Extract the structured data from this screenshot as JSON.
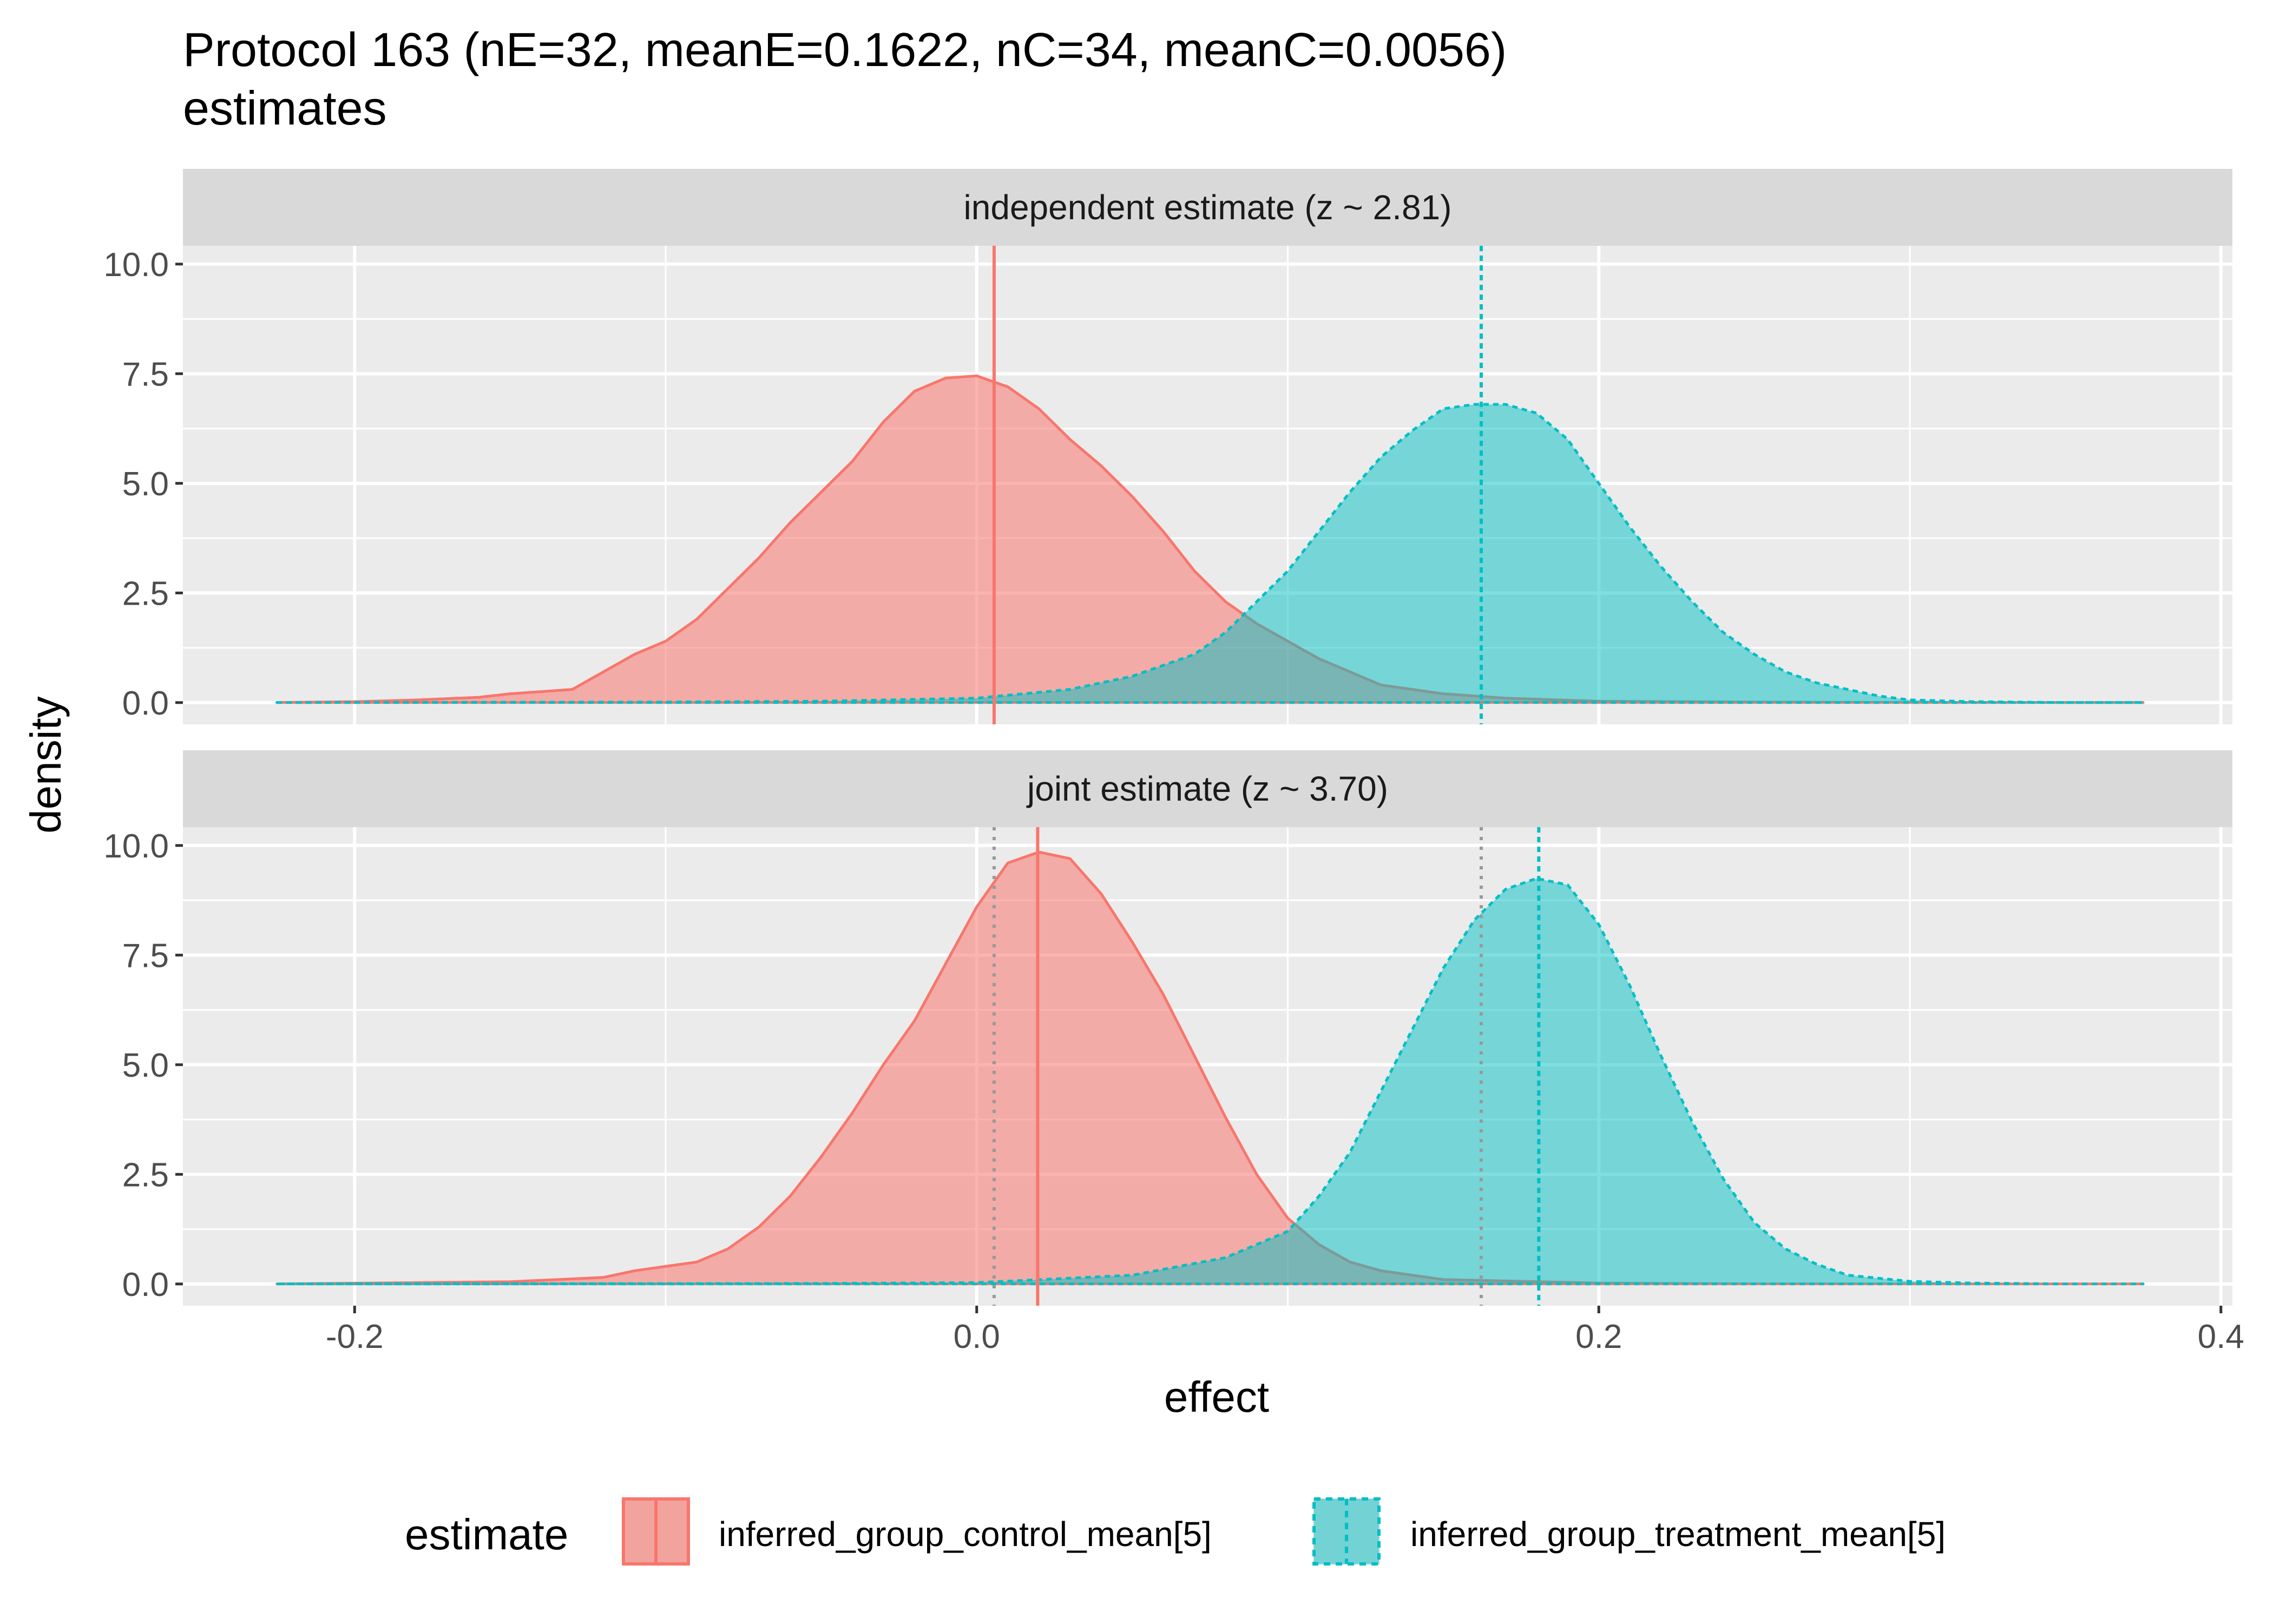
{
  "chart_data": {
    "type": "area",
    "title_line1": "Protocol 163 (nE=32, meanE=0.1622, nC=34, meanC=0.0056)",
    "title_line2": "estimates",
    "xlabel": "effect",
    "ylabel": "density",
    "xlim": [
      -0.2552,
      0.4037
    ],
    "ylim": [
      -0.4957,
      10.4179
    ],
    "x_ticks": [
      -0.2,
      0.0,
      0.2,
      0.4
    ],
    "x_tick_labels": [
      "-0.2",
      "0.0",
      "0.2",
      "0.4"
    ],
    "y_ticks": [
      0.0,
      2.5,
      5.0,
      7.5,
      10.0
    ],
    "y_tick_labels": [
      "0.0",
      "2.5",
      "5.0",
      "7.5",
      "10.0"
    ],
    "legend": {
      "title": "estimate",
      "position": "bottom",
      "entries": [
        {
          "label": "inferred_group_control_mean[5]",
          "color": "#F8766D",
          "linetype": "solid"
        },
        {
          "label": "inferred_group_treatment_mean[5]",
          "color": "#00BFC4",
          "linetype": "dashed"
        }
      ]
    },
    "colors": {
      "control": "#F8766D",
      "treatment": "#00BFC4",
      "reference_line": "#999999"
    },
    "panels": [
      {
        "strip": "independent estimate (z ~  2.81)",
        "control_mean": 0.0056,
        "treatment_mean": 0.1622,
        "reference_lines": [],
        "series": [
          {
            "name": "inferred_group_control_mean[5]",
            "x": [
              -0.225,
              -0.2,
              -0.18,
              -0.16,
              -0.15,
              -0.14,
              -0.13,
              -0.12,
              -0.11,
              -0.1,
              -0.09,
              -0.08,
              -0.07,
              -0.06,
              -0.05,
              -0.04,
              -0.03,
              -0.02,
              -0.01,
              0.0,
              0.01,
              0.02,
              0.03,
              0.04,
              0.05,
              0.06,
              0.07,
              0.08,
              0.09,
              0.1,
              0.11,
              0.12,
              0.13,
              0.14,
              0.15,
              0.17,
              0.2,
              0.25,
              0.3,
              0.375
            ],
            "y": [
              0.0,
              0.02,
              0.06,
              0.12,
              0.2,
              0.25,
              0.3,
              0.7,
              1.1,
              1.4,
              1.9,
              2.6,
              3.3,
              4.1,
              4.8,
              5.5,
              6.4,
              7.1,
              7.4,
              7.45,
              7.2,
              6.7,
              6.0,
              5.4,
              4.7,
              3.9,
              3.0,
              2.3,
              1.8,
              1.4,
              1.0,
              0.7,
              0.4,
              0.3,
              0.2,
              0.1,
              0.03,
              0.01,
              0.0,
              0.0
            ]
          },
          {
            "name": "inferred_group_treatment_mean[5]",
            "x": [
              -0.225,
              -0.1,
              -0.05,
              0.0,
              0.03,
              0.05,
              0.07,
              0.08,
              0.09,
              0.1,
              0.11,
              0.12,
              0.13,
              0.14,
              0.15,
              0.16,
              0.17,
              0.18,
              0.19,
              0.2,
              0.21,
              0.22,
              0.23,
              0.24,
              0.25,
              0.26,
              0.27,
              0.28,
              0.29,
              0.3,
              0.32,
              0.35,
              0.375
            ],
            "y": [
              0.0,
              0.01,
              0.03,
              0.1,
              0.3,
              0.6,
              1.1,
              1.6,
              2.3,
              3.0,
              3.9,
              4.8,
              5.6,
              6.2,
              6.7,
              6.8,
              6.8,
              6.6,
              6.0,
              5.0,
              4.0,
              3.1,
              2.3,
              1.6,
              1.1,
              0.7,
              0.45,
              0.3,
              0.15,
              0.06,
              0.02,
              0.0,
              0.0
            ]
          }
        ]
      },
      {
        "strip": "joint estimate (z ~  3.70)",
        "control_mean": 0.0196,
        "treatment_mean": 0.1807,
        "reference_lines": [
          0.0056,
          0.1622
        ],
        "series": [
          {
            "name": "inferred_group_control_mean[5]",
            "x": [
              -0.225,
              -0.15,
              -0.12,
              -0.11,
              -0.1,
              -0.09,
              -0.08,
              -0.07,
              -0.06,
              -0.05,
              -0.04,
              -0.03,
              -0.02,
              -0.01,
              0.0,
              0.01,
              0.02,
              0.03,
              0.04,
              0.05,
              0.06,
              0.07,
              0.08,
              0.09,
              0.1,
              0.11,
              0.12,
              0.13,
              0.15,
              0.2,
              0.25,
              0.375
            ],
            "y": [
              0.0,
              0.05,
              0.15,
              0.3,
              0.4,
              0.5,
              0.8,
              1.3,
              2.0,
              2.9,
              3.9,
              5.0,
              6.0,
              7.3,
              8.6,
              9.6,
              9.85,
              9.7,
              8.9,
              7.8,
              6.6,
              5.2,
              3.8,
              2.5,
              1.5,
              0.9,
              0.5,
              0.3,
              0.1,
              0.02,
              0.0,
              0.0
            ]
          },
          {
            "name": "inferred_group_treatment_mean[5]",
            "x": [
              -0.225,
              -0.05,
              0.0,
              0.05,
              0.08,
              0.1,
              0.11,
              0.12,
              0.13,
              0.14,
              0.15,
              0.16,
              0.17,
              0.18,
              0.19,
              0.2,
              0.21,
              0.22,
              0.23,
              0.24,
              0.25,
              0.26,
              0.27,
              0.28,
              0.3,
              0.32,
              0.35,
              0.375
            ],
            "y": [
              0.0,
              0.01,
              0.03,
              0.2,
              0.6,
              1.2,
              2.0,
              3.0,
              4.4,
              5.8,
              7.2,
              8.3,
              9.0,
              9.25,
              9.1,
              8.2,
              6.8,
              5.2,
              3.7,
              2.4,
              1.4,
              0.8,
              0.45,
              0.2,
              0.06,
              0.02,
              0.0,
              0.0
            ]
          }
        ]
      }
    ]
  }
}
